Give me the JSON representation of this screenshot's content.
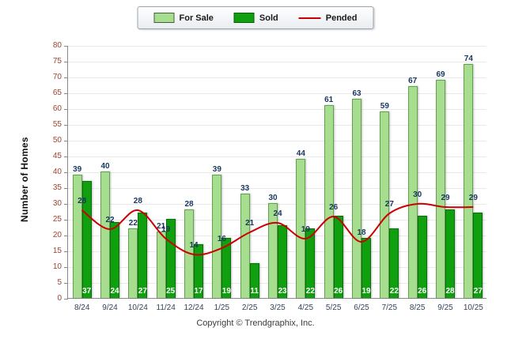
{
  "legend": {
    "items": [
      {
        "label": "For Sale"
      },
      {
        "label": "Sold"
      },
      {
        "label": "Pended"
      }
    ]
  },
  "y_axis_title": "Number of Homes",
  "footer": "Copyright © Trendgraphix, Inc.",
  "colors": {
    "for_sale_bar": "#a6dd8e",
    "for_sale_border": "#63a050",
    "sold_bar": "#0f9f0f",
    "sold_border": "#0a6e0a",
    "pended_line": "#cc0000",
    "value_label": "#17375e",
    "sold_label": "#ffffff",
    "y_tick": "#9b4430",
    "x_tick": "#33425b",
    "grid": "#e9e9e9",
    "axis": "#8a8a8a"
  },
  "chart_data": {
    "type": "bar",
    "subtype": "grouped-bars-with-line-overlay",
    "title": "",
    "xlabel": "",
    "ylabel": "Number of Homes",
    "categories": [
      "8/24",
      "9/24",
      "10/24",
      "11/24",
      "12/24",
      "1/25",
      "2/25",
      "3/25",
      "4/25",
      "5/25",
      "6/25",
      "7/25",
      "8/25",
      "9/25",
      "10/25"
    ],
    "series": [
      {
        "name": "For Sale",
        "render": "bar",
        "values": [
          39,
          40,
          22,
          21,
          28,
          39,
          33,
          30,
          44,
          61,
          63,
          59,
          67,
          69,
          74
        ]
      },
      {
        "name": "Sold",
        "render": "bar",
        "values": [
          37,
          24,
          27,
          25,
          17,
          19,
          11,
          23,
          22,
          26,
          19,
          22,
          26,
          28,
          27
        ]
      },
      {
        "name": "Pended",
        "render": "line",
        "values": [
          28,
          22,
          28,
          19,
          14,
          16,
          21,
          24,
          19,
          26,
          18,
          27,
          30,
          29,
          29
        ]
      }
    ],
    "ylim": [
      0,
      80
    ],
    "ytick_step": 5,
    "grid": true,
    "legend_position": "top-center"
  }
}
